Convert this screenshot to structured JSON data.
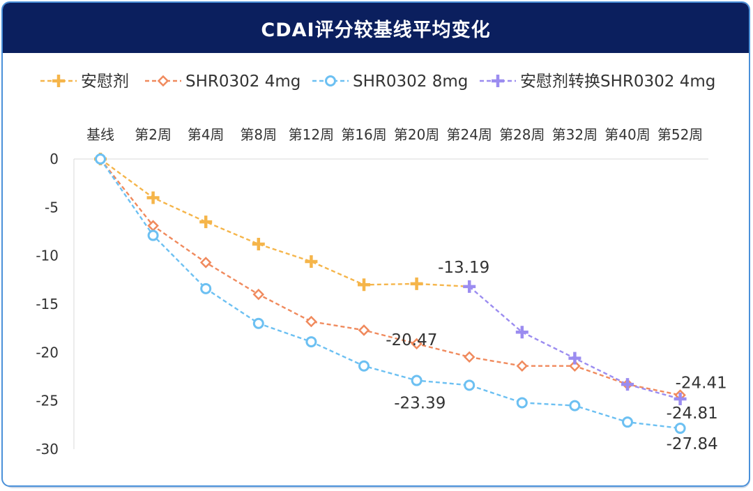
{
  "title": "CDAI评分较基线平均变化",
  "colors": {
    "title_bg": "#0b1f5e",
    "frame_border": "#4a90d9",
    "placebo": "#f5b54a",
    "shr4": "#f08a5d",
    "shr8": "#6cc0f2",
    "switch": "#9b8cf0"
  },
  "chart_data": {
    "type": "line",
    "title": "CDAI评分较基线平均变化",
    "categories": [
      "基线",
      "第2周",
      "第4周",
      "第8周",
      "第12周",
      "第16周",
      "第20周",
      "第24周",
      "第28周",
      "第32周",
      "第40周",
      "第52周"
    ],
    "ylim": [
      -30,
      0
    ],
    "yticks": [
      0,
      -5,
      -10,
      -15,
      -20,
      -25,
      -30
    ],
    "grid": false,
    "legend_position": "top",
    "series": [
      {
        "key": "placebo",
        "name": "安慰剂",
        "marker": "plus",
        "color": "#f5b54a",
        "values": [
          0,
          -4.0,
          -6.5,
          -8.8,
          -10.6,
          -13.0,
          -12.9,
          -13.19,
          null,
          null,
          null,
          null
        ]
      },
      {
        "key": "shr4",
        "name": "SHR0302 4mg",
        "marker": "diamond",
        "color": "#f08a5d",
        "values": [
          0,
          -6.9,
          -10.7,
          -14.0,
          -16.8,
          -17.7,
          -19.1,
          -20.47,
          -21.4,
          -21.4,
          -23.3,
          -24.41
        ]
      },
      {
        "key": "shr8",
        "name": "SHR0302 8mg",
        "marker": "circle",
        "color": "#6cc0f2",
        "values": [
          0,
          -7.9,
          -13.4,
          -17.0,
          -18.9,
          -21.4,
          -22.9,
          -23.39,
          -25.2,
          -25.5,
          -27.2,
          -27.84
        ]
      },
      {
        "key": "switch",
        "name": "安慰剂转换SHR0302 4mg",
        "marker": "plus",
        "color": "#9b8cf0",
        "values": [
          null,
          null,
          null,
          null,
          null,
          null,
          null,
          -13.19,
          -17.9,
          -20.6,
          -23.3,
          -24.81
        ]
      }
    ],
    "annotations": [
      {
        "series": "placebo",
        "index": 7,
        "text": "-13.19"
      },
      {
        "series": "shr4",
        "index": 7,
        "text": "-20.47"
      },
      {
        "series": "shr8",
        "index": 7,
        "text": "-23.39"
      },
      {
        "series": "shr4",
        "index": 11,
        "text": "-24.41"
      },
      {
        "series": "switch",
        "index": 11,
        "text": "-24.81"
      },
      {
        "series": "shr8",
        "index": 11,
        "text": "-27.84"
      }
    ]
  }
}
